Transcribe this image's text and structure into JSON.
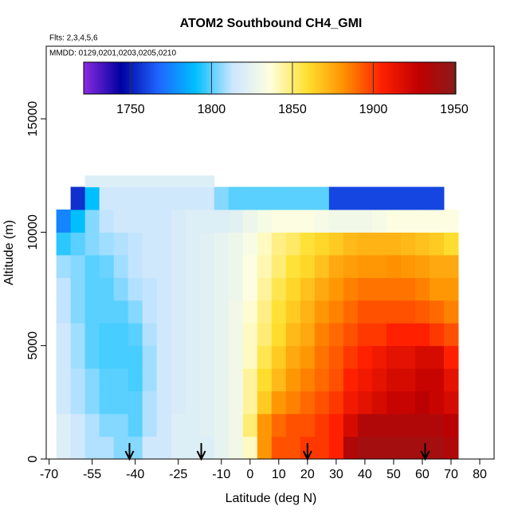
{
  "chart_data": {
    "type": "heatmap",
    "title": "ATOM2 Southbound CH4_GMI",
    "subtitle": "Flts: 2,3,4,5,6",
    "annotation": "MMDD: 0129,0201,0203,0205,0210",
    "xlabel": "Latitude (deg N)",
    "ylabel": "Altitude (m)",
    "xlim": [
      -71,
      85
    ],
    "ylim": [
      0,
      18200
    ],
    "xticks": [
      -70,
      -55,
      -40,
      -25,
      -10,
      0,
      10,
      20,
      30,
      40,
      50,
      60,
      70,
      80
    ],
    "yticks": [
      0,
      5000,
      10000,
      15000
    ],
    "x_edges": [
      -67.5,
      -62.5,
      -57.5,
      -52.5,
      -47.5,
      -42.5,
      -37.5,
      -32.5,
      -27.5,
      -22.5,
      -17.5,
      -12.5,
      -7.5,
      -2.5,
      2.5,
      7.5,
      12.5,
      17.5,
      22.5,
      27.5,
      32.5,
      37.5,
      42.5,
      47.5,
      52.5,
      57.5,
      62.5,
      67.5,
      72.5
    ],
    "y_edges": [
      0,
      1000,
      2000,
      3000,
      4000,
      5000,
      6000,
      7000,
      8000,
      9000,
      10000,
      11000,
      12000,
      12500
    ],
    "values": [
      [
        1820,
        1815,
        1810,
        1810,
        1805,
        1805,
        1815,
        1815,
        1820,
        1820,
        1820,
        1825,
        1830,
        1840,
        1880,
        1895,
        1895,
        1900,
        1900,
        1905,
        1935,
        1940,
        1940,
        1940,
        1940,
        1940,
        1940,
        1935
      ],
      [
        1820,
        1815,
        1810,
        1805,
        1805,
        1800,
        1810,
        1815,
        1820,
        1820,
        1822,
        1825,
        1830,
        1850,
        1880,
        1890,
        1895,
        1895,
        1900,
        1905,
        1920,
        1935,
        1935,
        1935,
        1935,
        1935,
        1935,
        1930
      ],
      [
        1815,
        1810,
        1805,
        1800,
        1800,
        1800,
        1810,
        1815,
        1818,
        1820,
        1822,
        1825,
        1830,
        1845,
        1865,
        1880,
        1885,
        1890,
        1895,
        1900,
        1910,
        1915,
        1920,
        1925,
        1925,
        1930,
        1925,
        1920
      ],
      [
        1815,
        1810,
        1805,
        1800,
        1800,
        1798,
        1808,
        1815,
        1818,
        1820,
        1822,
        1825,
        1830,
        1845,
        1860,
        1870,
        1880,
        1885,
        1890,
        1895,
        1905,
        1910,
        1915,
        1920,
        1920,
        1925,
        1925,
        1915
      ],
      [
        1815,
        1808,
        1800,
        1798,
        1798,
        1798,
        1808,
        1815,
        1818,
        1820,
        1822,
        1825,
        1830,
        1840,
        1855,
        1865,
        1875,
        1880,
        1888,
        1893,
        1900,
        1905,
        1910,
        1915,
        1915,
        1920,
        1920,
        1905
      ],
      [
        1815,
        1808,
        1800,
        1798,
        1798,
        1800,
        1810,
        1815,
        1818,
        1820,
        1822,
        1825,
        1830,
        1840,
        1850,
        1860,
        1870,
        1875,
        1885,
        1890,
        1895,
        1900,
        1900,
        1905,
        1905,
        1905,
        1900,
        1895
      ],
      [
        1812,
        1805,
        1800,
        1800,
        1800,
        1805,
        1812,
        1815,
        1818,
        1820,
        1822,
        1825,
        1830,
        1838,
        1848,
        1858,
        1865,
        1872,
        1880,
        1885,
        1890,
        1895,
        1895,
        1895,
        1895,
        1893,
        1890,
        1885
      ],
      [
        1812,
        1805,
        1800,
        1800,
        1805,
        1810,
        1812,
        1815,
        1818,
        1820,
        1822,
        1825,
        1828,
        1835,
        1845,
        1855,
        1862,
        1868,
        1875,
        1880,
        1885,
        1888,
        1888,
        1888,
        1888,
        1885,
        1880,
        1880
      ],
      [
        1808,
        1805,
        1800,
        1802,
        1808,
        1812,
        1815,
        1815,
        1818,
        1820,
        1822,
        1825,
        1828,
        1835,
        1842,
        1850,
        1858,
        1862,
        1868,
        1875,
        1878,
        1880,
        1880,
        1882,
        1880,
        1878,
        1875,
        1875
      ],
      [
        1795,
        1800,
        1805,
        1808,
        1810,
        1812,
        1815,
        1815,
        1818,
        1820,
        1822,
        1825,
        1828,
        1833,
        1840,
        1848,
        1852,
        1858,
        1862,
        1865,
        1870,
        1872,
        1872,
        1872,
        1870,
        1868,
        1865,
        1860
      ],
      [
        1775,
        1790,
        1805,
        1812,
        1815,
        1815,
        1815,
        1815,
        1818,
        1820,
        1820,
        1820,
        1822,
        1828,
        1832,
        1835,
        1835,
        1835,
        1832,
        1830,
        1830,
        1830,
        1832,
        1835,
        1835,
        1835,
        1835,
        1835
      ],
      [
        null,
        1755,
        1790,
        1815,
        1815,
        1815,
        1815,
        1815,
        1815,
        1815,
        1815,
        1805,
        1800,
        1800,
        1800,
        1800,
        1800,
        1800,
        1800,
        1760,
        1760,
        1760,
        1760,
        1760,
        1760,
        1760,
        1760,
        null
      ],
      [
        null,
        null,
        1820,
        1820,
        1820,
        1820,
        1820,
        1820,
        1820,
        1820,
        1820,
        null,
        null,
        null,
        null,
        null,
        null,
        null,
        null,
        null,
        null,
        null,
        null,
        null,
        null,
        null,
        null,
        null
      ]
    ],
    "clim": [
      1721,
      1951
    ],
    "cticks": [
      1750,
      1800,
      1850,
      1900,
      1950
    ],
    "colorscale": [
      "#8a2be2",
      "#0000a0",
      "#1e64ff",
      "#00bfff",
      "#cce6ff",
      "#ffffe0",
      "#ffe030",
      "#ff9000",
      "#ff2000",
      "#c00000",
      "#8b1a1a"
    ],
    "arrows": [
      -42,
      -17,
      20,
      61
    ]
  }
}
